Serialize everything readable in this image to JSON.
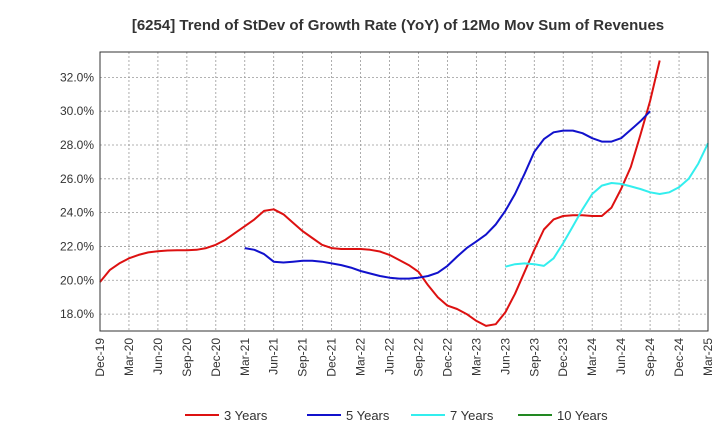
{
  "chart_data": {
    "type": "line",
    "title": "[6254]  Trend of StDev of Growth Rate (YoY) of 12Mo Mov Sum of Revenues",
    "xlabel": "",
    "ylabel": "",
    "ylim": [
      17.0,
      33.5
    ],
    "grid": true,
    "legend_position": "bottom",
    "y_ticks": [
      {
        "value": 18,
        "label": "18.0%"
      },
      {
        "value": 20,
        "label": "20.0%"
      },
      {
        "value": 22,
        "label": "22.0%"
      },
      {
        "value": 24,
        "label": "24.0%"
      },
      {
        "value": 26,
        "label": "26.0%"
      },
      {
        "value": 28,
        "label": "28.0%"
      },
      {
        "value": 30,
        "label": "30.0%"
      },
      {
        "value": 32,
        "label": "32.0%"
      }
    ],
    "x_ticks": [
      "Dec-19",
      "Mar-20",
      "Jun-20",
      "Sep-20",
      "Dec-20",
      "Mar-21",
      "Jun-21",
      "Sep-21",
      "Dec-21",
      "Mar-22",
      "Jun-22",
      "Sep-22",
      "Dec-22",
      "Mar-23",
      "Jun-23",
      "Sep-23",
      "Dec-23",
      "Mar-24",
      "Jun-24",
      "Sep-24",
      "Dec-24",
      "Mar-25"
    ],
    "x_count": 64,
    "series": [
      {
        "name": "3 Years",
        "color": "#dd1111",
        "start_index": 0,
        "values": [
          19.9,
          20.6,
          21.0,
          21.3,
          21.5,
          21.65,
          21.72,
          21.76,
          21.78,
          21.78,
          21.8,
          21.9,
          22.1,
          22.4,
          22.8,
          23.2,
          23.6,
          24.1,
          24.2,
          23.9,
          23.4,
          22.9,
          22.5,
          22.1,
          21.9,
          21.85,
          21.85,
          21.85,
          21.8,
          21.7,
          21.5,
          21.2,
          20.9,
          20.5,
          19.7,
          19.0,
          18.5,
          18.3,
          18.0,
          17.6,
          17.3,
          17.4,
          18.1,
          19.2,
          20.5,
          21.8,
          23.0,
          23.6,
          23.8,
          23.85,
          23.85,
          23.8,
          23.8,
          24.3,
          25.4,
          26.7,
          28.6,
          30.6,
          33.0
        ]
      },
      {
        "name": "5 Years",
        "color": "#1111cc",
        "start_index": 15,
        "values": [
          21.9,
          21.8,
          21.55,
          21.1,
          21.05,
          21.1,
          21.15,
          21.15,
          21.1,
          21.0,
          20.9,
          20.75,
          20.55,
          20.4,
          20.25,
          20.15,
          20.1,
          20.1,
          20.15,
          20.25,
          20.45,
          20.85,
          21.4,
          21.9,
          22.3,
          22.7,
          23.3,
          24.1,
          25.1,
          26.3,
          27.6,
          28.35,
          28.75,
          28.85,
          28.85,
          28.7,
          28.4,
          28.2,
          28.2,
          28.4,
          28.9,
          29.4,
          30.0
        ]
      },
      {
        "name": "7 Years",
        "color": "#33eeee",
        "start_index": 42,
        "values": [
          20.8,
          20.95,
          21.0,
          20.95,
          20.85,
          21.3,
          22.2,
          23.2,
          24.2,
          25.1,
          25.6,
          25.75,
          25.7,
          25.55,
          25.4,
          25.2,
          25.1,
          25.2,
          25.5,
          26.0,
          26.9,
          28.1
        ]
      },
      {
        "name": "10 Years",
        "color": "#228822",
        "start_index": 0,
        "values": []
      }
    ]
  }
}
